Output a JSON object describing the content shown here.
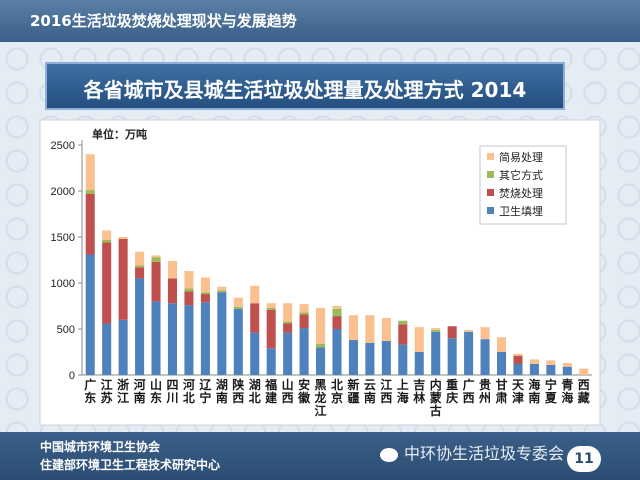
{
  "header": {
    "title": "2016生活垃圾焚烧处理现状与发展趋势"
  },
  "footer": {
    "org1": "中国城市环境卫生协会",
    "org2": "住建部环境卫生工程技术研究中心",
    "watermark": "中环协生活垃圾专委会",
    "page": "11"
  },
  "chart_data": {
    "type": "bar",
    "stacked": true,
    "title": "各省城市及县城生活垃圾处理量及处理方式 2014",
    "unit_label": "单位：万吨",
    "ylim": [
      0,
      2500
    ],
    "yticks": [
      "0",
      "500",
      "1000",
      "1500",
      "2000",
      "2500"
    ],
    "legend_position": "top-right",
    "categories": [
      "广东",
      "江苏",
      "浙江",
      "河南",
      "山东",
      "四川",
      "河北",
      "辽宁",
      "湖南",
      "陕西",
      "湖北",
      "福建",
      "山西",
      "安徽",
      "黑龙江",
      "北京",
      "新疆",
      "云南",
      "江西",
      "上海",
      "吉林",
      "内蒙古",
      "重庆",
      "广西",
      "贵州",
      "甘肃",
      "天津",
      "海南",
      "宁夏",
      "青海",
      "西藏"
    ],
    "series": [
      {
        "name": "卫生填埋",
        "color": "#4f81bd",
        "values": [
          1310,
          560,
          600,
          1050,
          800,
          780,
          760,
          790,
          900,
          720,
          460,
          290,
          460,
          510,
          300,
          500,
          380,
          350,
          370,
          330,
          250,
          470,
          400,
          470,
          390,
          250,
          120,
          120,
          110,
          90,
          0
        ]
      },
      {
        "name": "焚烧处理",
        "color": "#c0504d",
        "values": [
          660,
          880,
          880,
          120,
          430,
          270,
          150,
          90,
          0,
          0,
          320,
          420,
          100,
          150,
          0,
          140,
          0,
          0,
          0,
          220,
          0,
          0,
          130,
          0,
          0,
          0,
          90,
          0,
          0,
          0,
          0
        ]
      },
      {
        "name": "其它方式",
        "color": "#9bbb59",
        "values": [
          40,
          30,
          0,
          20,
          50,
          0,
          30,
          20,
          20,
          20,
          0,
          20,
          20,
          20,
          40,
          80,
          0,
          0,
          0,
          40,
          0,
          20,
          0,
          0,
          0,
          0,
          0,
          0,
          0,
          0,
          0
        ]
      },
      {
        "name": "简易处理",
        "color": "#fac090",
        "values": [
          390,
          100,
          20,
          150,
          20,
          190,
          190,
          160,
          40,
          100,
          190,
          50,
          200,
          90,
          390,
          30,
          270,
          300,
          250,
          0,
          270,
          20,
          0,
          20,
          130,
          160,
          20,
          50,
          50,
          40,
          70
        ]
      }
    ]
  }
}
